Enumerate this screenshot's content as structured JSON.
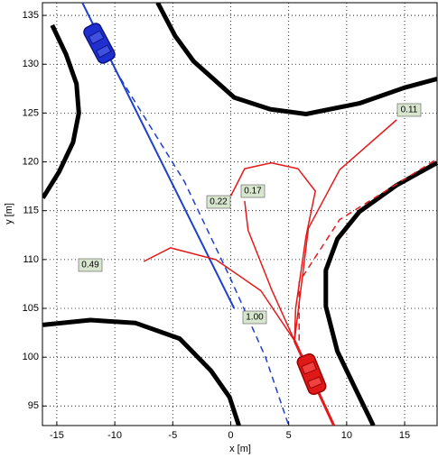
{
  "chart_data": {
    "type": "line",
    "xlabel": "x [m]",
    "ylabel": "y [m]",
    "xlim": [
      -16.24,
      17.8
    ],
    "ylim": [
      93,
      136.3
    ],
    "xticks": [
      -15,
      -10,
      -5,
      0,
      5,
      10,
      15
    ],
    "yticks": [
      95,
      100,
      105,
      110,
      115,
      120,
      125,
      130,
      135
    ],
    "grid": true,
    "annotations": [
      "0.11",
      "0.17",
      "0.22",
      "0.49",
      "1.00"
    ],
    "series": [
      {
        "color": "#000000",
        "width": 5,
        "dashed": false,
        "x": [
          -15.4,
          -14.2,
          -13.3,
          -13.1,
          -13.6,
          -14.8,
          -16.2
        ],
        "values": [
          134,
          131,
          128,
          125,
          122,
          119,
          116.3
        ]
      },
      {
        "color": "#000000",
        "width": 5,
        "dashed": false,
        "x": [
          -6.3,
          -4.8,
          -3.2,
          0.3,
          3.4,
          6.5,
          11.1,
          15,
          17.8
        ],
        "values": [
          136.3,
          132.9,
          130.3,
          126.6,
          125.4,
          124.9,
          126,
          127.6,
          128.5
        ]
      },
      {
        "color": "#000000",
        "width": 5,
        "dashed": false,
        "x": [
          -16.2,
          -12.1,
          -8.2,
          -4.4,
          -1.7,
          -0.1,
          0.7
        ],
        "values": [
          103.3,
          103.8,
          103.5,
          101.9,
          98.6,
          95.9,
          93
        ]
      },
      {
        "color": "#000000",
        "width": 5,
        "dashed": false,
        "x": [
          17.8,
          14.3,
          11.1,
          9.2,
          8.2,
          8.2,
          9.2,
          10.7,
          12.3
        ],
        "values": [
          119.9,
          117.6,
          114.9,
          112.1,
          108.9,
          105.2,
          100.6,
          96.9,
          93
        ]
      },
      {
        "color": "#1f3fcf",
        "width": 2,
        "dashed": false,
        "x": [
          -12.8,
          0.3
        ],
        "values": [
          136.3,
          105
        ]
      },
      {
        "color": "#1f3fcf",
        "width": 1.5,
        "dashed": true,
        "x": [
          -10,
          -4,
          0,
          3,
          5
        ],
        "values": [
          129.5,
          118,
          108,
          100,
          93
        ]
      },
      {
        "color": "#e41a1a",
        "width": 1.5,
        "dashed": false,
        "x": [
          5.5,
          6.7,
          9.4,
          14.3
        ],
        "values": [
          101.7,
          113.2,
          119.2,
          124.3
        ]
      },
      {
        "color": "#e41a1a",
        "width": 1.5,
        "dashed": true,
        "x": [
          5.9,
          5.9,
          9.4,
          17.8
        ],
        "values": [
          101.7,
          107.7,
          114.1,
          120.3
        ]
      },
      {
        "color": "#e41a1a",
        "width": 1.5,
        "dashed": false,
        "x": [
          5.5,
          3.5,
          1.5,
          1.2
        ],
        "values": [
          101.7,
          107,
          113,
          116
        ]
      },
      {
        "color": "#e41a1a",
        "width": 1.5,
        "dashed": false,
        "x": [
          0,
          1.2,
          3.5,
          5.8,
          7.3,
          6.5,
          5.6,
          5.5
        ],
        "values": [
          116.5,
          119.3,
          119.9,
          119.3,
          117,
          112.4,
          105,
          101.7
        ]
      },
      {
        "color": "#e41a1a",
        "width": 1.5,
        "dashed": false,
        "x": [
          -7.5,
          -5.2,
          -1.3,
          2.6,
          5.5
        ],
        "values": [
          109.8,
          111.2,
          110,
          106.8,
          101.7
        ]
      },
      {
        "color": "#e41a1a",
        "width": 3,
        "dashed": false,
        "x": [
          5.5,
          8.9
        ],
        "values": [
          101.7,
          93
        ]
      }
    ]
  }
}
